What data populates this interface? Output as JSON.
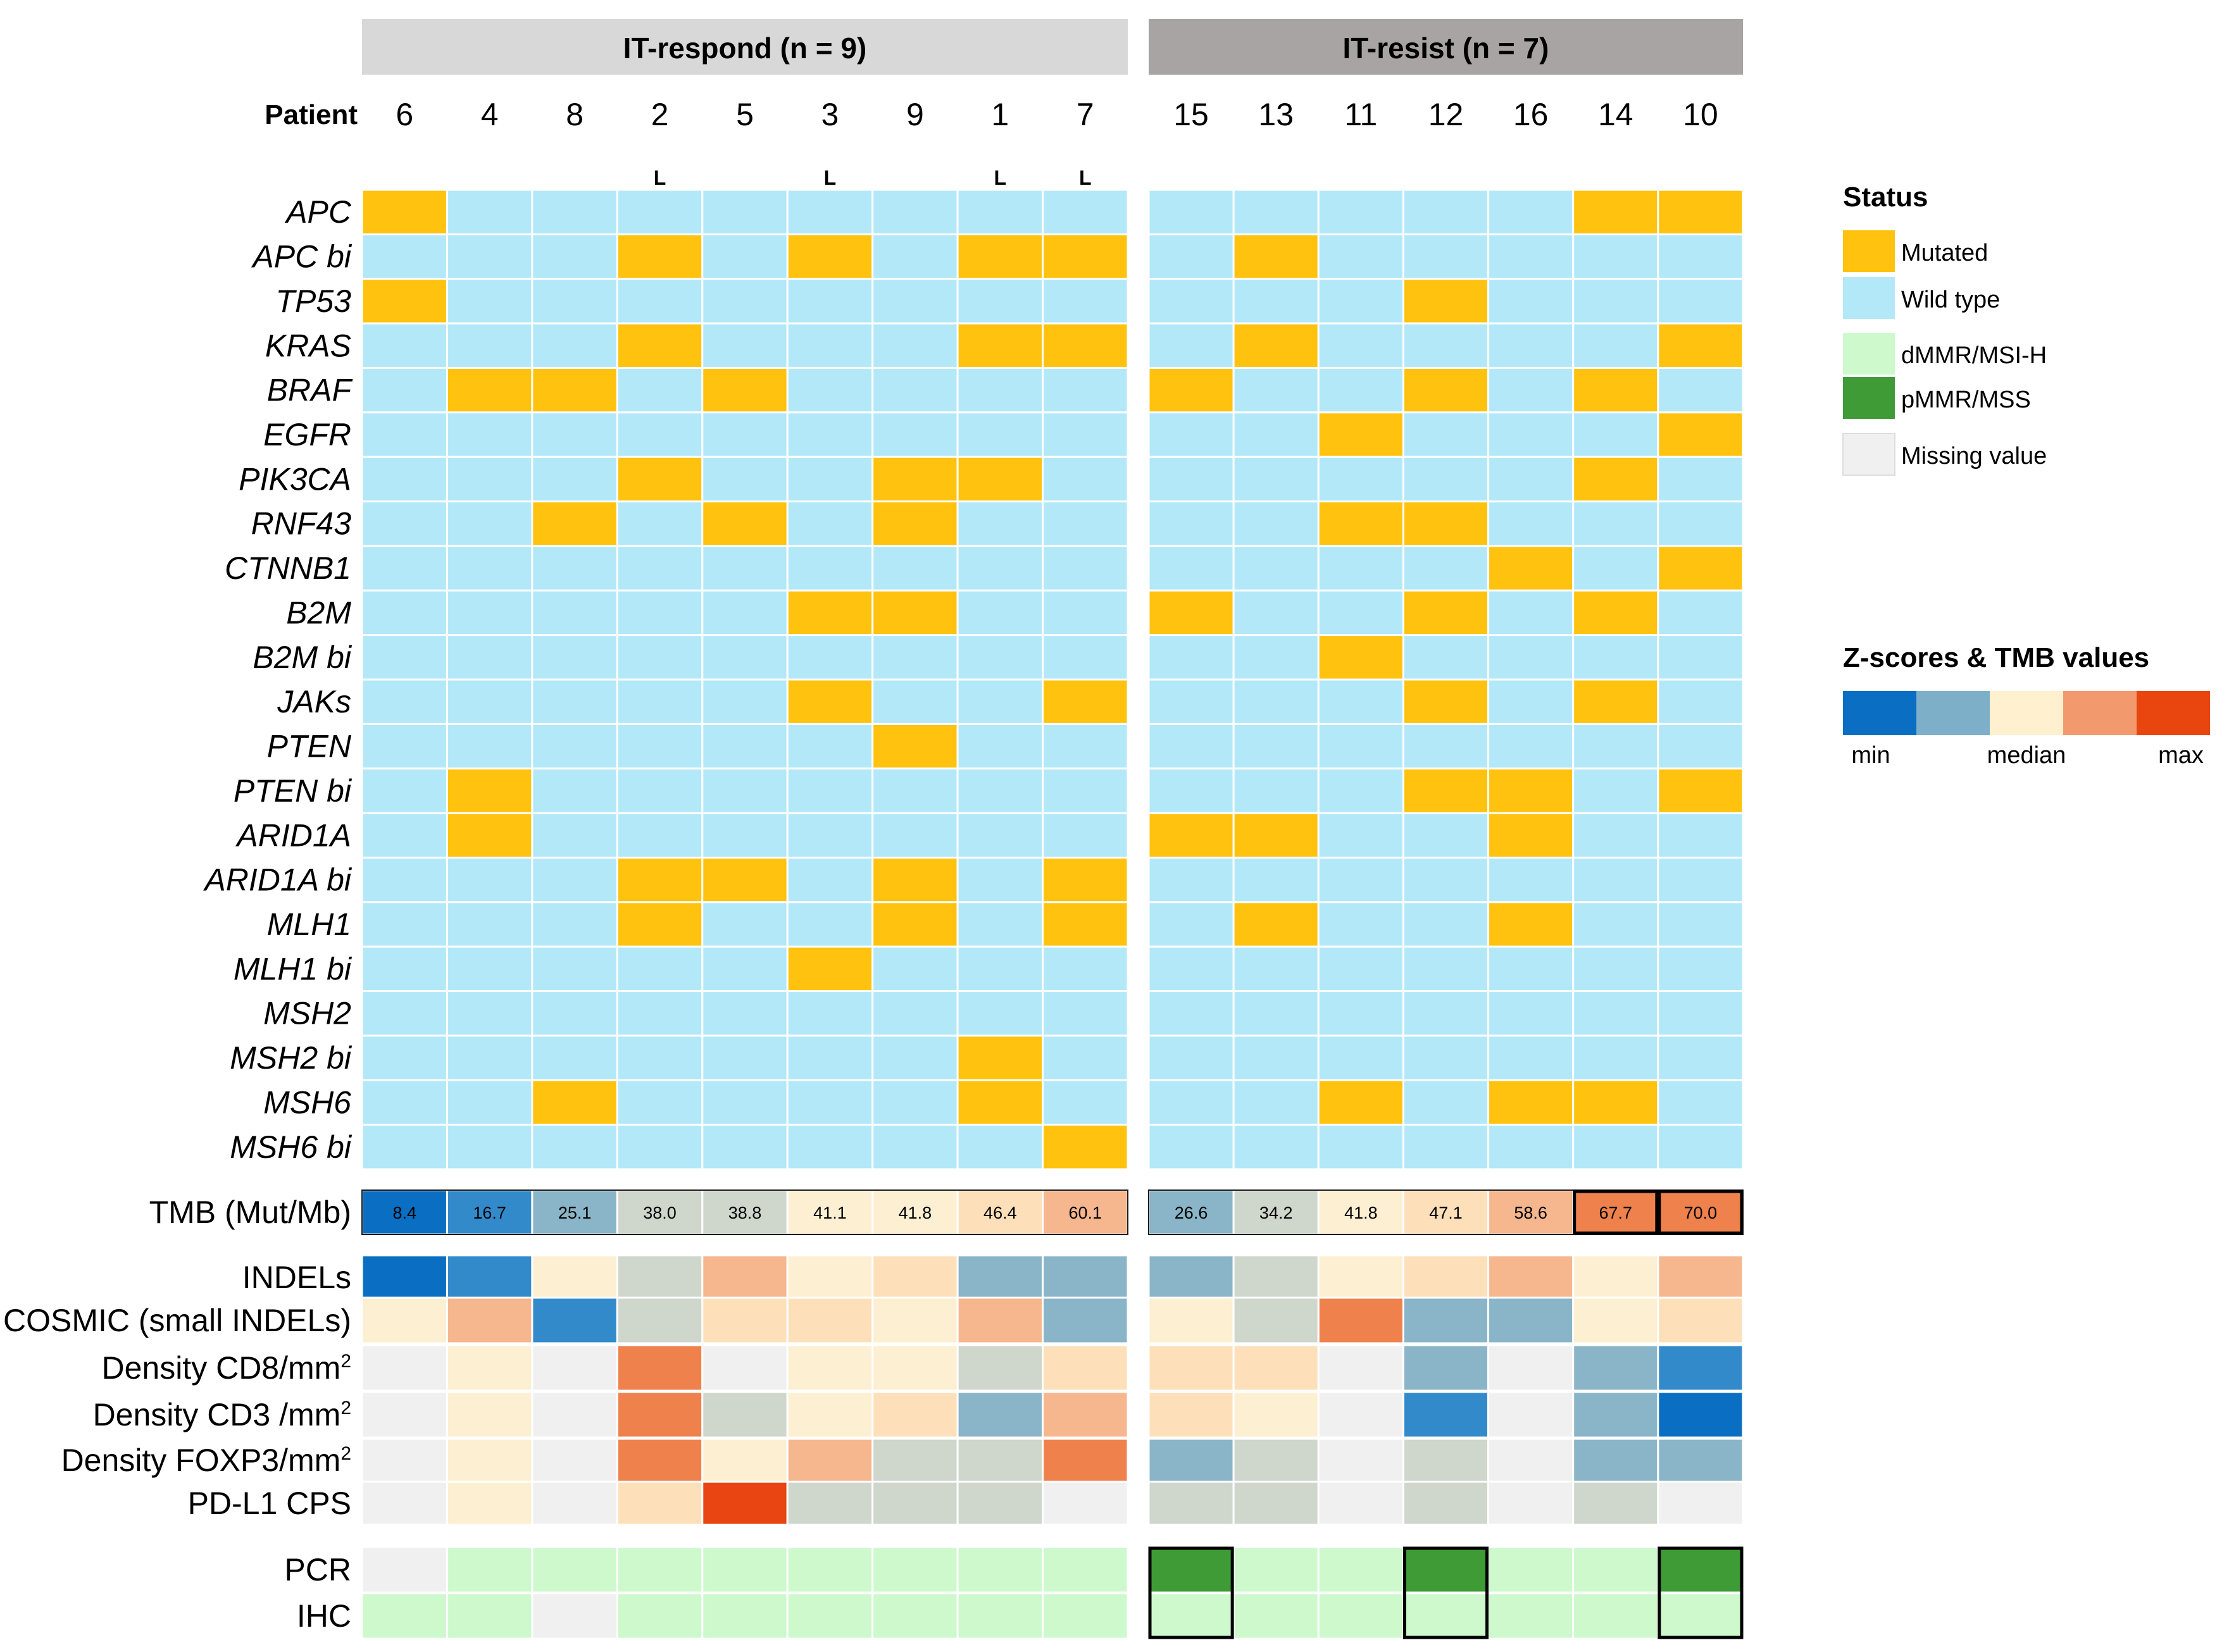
{
  "chart_data": {
    "type": "heatmap",
    "groups": [
      {
        "label": "IT-respond (n = 9)",
        "patients": [
          "6",
          "4",
          "8",
          "2",
          "5",
          "3",
          "9",
          "1",
          "7"
        ]
      },
      {
        "label": "IT-resist (n = 7)",
        "patients": [
          "15",
          "13",
          "11",
          "12",
          "16",
          "14",
          "10"
        ]
      }
    ],
    "patient_label": "Patient",
    "l_marks": [
      "",
      "",
      "",
      "L",
      "",
      "L",
      "",
      "L",
      "L",
      "",
      "",
      "",
      "",
      "",
      "",
      ""
    ],
    "mutation_rows": [
      {
        "gene": "APC",
        "values": [
          1,
          0,
          0,
          0,
          0,
          0,
          0,
          0,
          0,
          0,
          0,
          0,
          0,
          0,
          1,
          1
        ]
      },
      {
        "gene": "APC bi",
        "values": [
          0,
          0,
          0,
          1,
          0,
          1,
          0,
          1,
          1,
          0,
          1,
          0,
          0,
          0,
          0,
          0
        ]
      },
      {
        "gene": "TP53",
        "values": [
          1,
          0,
          0,
          0,
          0,
          0,
          0,
          0,
          0,
          0,
          0,
          0,
          1,
          0,
          0,
          0
        ]
      },
      {
        "gene": "KRAS",
        "values": [
          0,
          0,
          0,
          1,
          0,
          0,
          0,
          1,
          1,
          0,
          1,
          0,
          0,
          0,
          0,
          1
        ]
      },
      {
        "gene": "BRAF",
        "values": [
          0,
          1,
          1,
          0,
          1,
          0,
          0,
          0,
          0,
          1,
          0,
          0,
          1,
          0,
          1,
          0
        ]
      },
      {
        "gene": "EGFR",
        "values": [
          0,
          0,
          0,
          0,
          0,
          0,
          0,
          0,
          0,
          0,
          0,
          1,
          0,
          0,
          0,
          1
        ]
      },
      {
        "gene": "PIK3CA",
        "values": [
          0,
          0,
          0,
          1,
          0,
          0,
          1,
          1,
          0,
          0,
          0,
          0,
          0,
          0,
          1,
          0
        ]
      },
      {
        "gene": "RNF43",
        "values": [
          0,
          0,
          1,
          0,
          1,
          0,
          1,
          0,
          0,
          0,
          0,
          1,
          1,
          0,
          0,
          0
        ]
      },
      {
        "gene": "CTNNB1",
        "values": [
          0,
          0,
          0,
          0,
          0,
          0,
          0,
          0,
          0,
          0,
          0,
          0,
          0,
          1,
          0,
          1
        ]
      },
      {
        "gene": "B2M",
        "values": [
          0,
          0,
          0,
          0,
          0,
          1,
          1,
          0,
          0,
          1,
          0,
          0,
          1,
          0,
          1,
          0
        ]
      },
      {
        "gene": "B2M bi",
        "values": [
          0,
          0,
          0,
          0,
          0,
          0,
          0,
          0,
          0,
          0,
          0,
          1,
          0,
          0,
          0,
          0
        ]
      },
      {
        "gene": "JAKs",
        "values": [
          0,
          0,
          0,
          0,
          0,
          1,
          0,
          0,
          1,
          0,
          0,
          0,
          1,
          0,
          1,
          0
        ]
      },
      {
        "gene": "PTEN",
        "values": [
          0,
          0,
          0,
          0,
          0,
          0,
          1,
          0,
          0,
          0,
          0,
          0,
          0,
          0,
          0,
          0
        ]
      },
      {
        "gene": "PTEN bi",
        "values": [
          0,
          1,
          0,
          0,
          0,
          0,
          0,
          0,
          0,
          0,
          0,
          0,
          1,
          1,
          0,
          1
        ]
      },
      {
        "gene": "ARID1A",
        "values": [
          0,
          1,
          0,
          0,
          0,
          0,
          0,
          0,
          0,
          1,
          1,
          0,
          0,
          1,
          0,
          0
        ]
      },
      {
        "gene": "ARID1A bi",
        "values": [
          0,
          0,
          0,
          1,
          1,
          0,
          1,
          0,
          1,
          0,
          0,
          0,
          0,
          0,
          0,
          0
        ]
      },
      {
        "gene": "MLH1",
        "values": [
          0,
          0,
          0,
          1,
          0,
          0,
          1,
          0,
          1,
          0,
          1,
          0,
          0,
          1,
          0,
          0
        ]
      },
      {
        "gene": "MLH1 bi",
        "values": [
          0,
          0,
          0,
          0,
          0,
          1,
          0,
          0,
          0,
          0,
          0,
          0,
          0,
          0,
          0,
          0
        ]
      },
      {
        "gene": "MSH2",
        "values": [
          0,
          0,
          0,
          0,
          0,
          0,
          0,
          0,
          0,
          0,
          0,
          0,
          0,
          0,
          0,
          0
        ]
      },
      {
        "gene": "MSH2 bi",
        "values": [
          0,
          0,
          0,
          0,
          0,
          0,
          0,
          1,
          0,
          0,
          0,
          0,
          0,
          0,
          0,
          0
        ]
      },
      {
        "gene": "MSH6",
        "values": [
          0,
          0,
          1,
          0,
          0,
          0,
          0,
          1,
          0,
          0,
          0,
          1,
          0,
          1,
          1,
          0
        ]
      },
      {
        "gene": "MSH6 bi",
        "values": [
          0,
          0,
          0,
          0,
          0,
          0,
          0,
          0,
          1,
          0,
          0,
          0,
          0,
          0,
          0,
          0
        ]
      }
    ],
    "tmb_row": {
      "label": "TMB (Mut/Mb)",
      "values": [
        "8.4",
        "16.7",
        "25.1",
        "38.0",
        "38.8",
        "41.1",
        "41.8",
        "46.4",
        "60.1",
        "26.6",
        "34.2",
        "41.8",
        "47.1",
        "58.6",
        "67.7",
        "70.0"
      ],
      "color_levels": [
        0,
        1,
        2,
        3,
        3,
        4,
        4,
        5,
        6,
        2,
        3,
        4,
        5,
        6,
        7,
        7
      ],
      "highlighted": [
        false,
        false,
        false,
        false,
        false,
        false,
        false,
        false,
        false,
        false,
        false,
        false,
        false,
        false,
        true,
        true
      ]
    },
    "zscore_rows": [
      {
        "label": "INDELs",
        "levels": [
          0,
          1,
          4,
          3,
          6,
          4,
          5,
          2,
          2,
          2,
          3,
          4,
          5,
          6,
          4,
          6
        ]
      },
      {
        "label": "COSMIC (small INDELs)",
        "levels": [
          4,
          6,
          1,
          3,
          5,
          5,
          4,
          6,
          2,
          4,
          3,
          7,
          2,
          2,
          4,
          5
        ]
      },
      {
        "label": "Density CD8/mm",
        "sup": "2",
        "levels": [
          -1,
          4,
          -1,
          7,
          -1,
          4,
          4,
          3,
          5,
          5,
          5,
          -1,
          2,
          -1,
          2,
          1
        ]
      },
      {
        "label": "Density CD3 /mm",
        "sup": "2",
        "levels": [
          -1,
          4,
          -1,
          7,
          3,
          4,
          5,
          2,
          6,
          5,
          4,
          -1,
          1,
          -1,
          2,
          0
        ]
      },
      {
        "label": "Density FOXP3/mm",
        "sup": "2",
        "levels": [
          -1,
          4,
          -1,
          7,
          4,
          6,
          3,
          3,
          7,
          2,
          3,
          -1,
          3,
          -1,
          2,
          2
        ]
      },
      {
        "label": "PD-L1 CPS",
        "levels": [
          -1,
          4,
          -1,
          5,
          8,
          3,
          3,
          3,
          -1,
          3,
          3,
          -1,
          3,
          -1,
          3,
          -1
        ]
      }
    ],
    "msi_rows": [
      {
        "label": "PCR",
        "values": [
          "missing",
          "dMMR",
          "dMMR",
          "dMMR",
          "dMMR",
          "dMMR",
          "dMMR",
          "dMMR",
          "dMMR",
          "pMMR",
          "dMMR",
          "dMMR",
          "pMMR",
          "dMMR",
          "dMMR",
          "pMMR"
        ]
      },
      {
        "label": "IHC",
        "values": [
          "dMMR",
          "dMMR",
          "missing",
          "dMMR",
          "dMMR",
          "dMMR",
          "dMMR",
          "dMMR",
          "dMMR",
          "dMMR",
          "dMMR",
          "dMMR",
          "dMMR",
          "dMMR",
          "dMMR",
          "dMMR"
        ]
      }
    ],
    "msi_boxed_columns": [
      9,
      12,
      15
    ],
    "legend": {
      "status_title": "Status",
      "items": [
        {
          "label": "Mutated",
          "color": "#FFC20E"
        },
        {
          "label": "Wild type",
          "color": "#B3E8F8"
        },
        {
          "label": "dMMR/MSI-H",
          "color": "#CDF9CD"
        },
        {
          "label": "pMMR/MSS",
          "color": "#3E9B35"
        },
        {
          "label": "Missing value",
          "color": "#F0F0F0"
        }
      ],
      "scale_title": "Z-scores & TMB values",
      "scale_labels": [
        "min",
        "median",
        "max"
      ],
      "scale_colors": [
        "#0A6FC2",
        "#7EAFC8",
        "#FFF0D0",
        "#F29A6E",
        "#E8450F"
      ]
    },
    "colors": {
      "mutated": "#FFC20E",
      "wildtype": "#B3E8F8",
      "dmmr": "#CDF9CD",
      "pmmr": "#3E9B35",
      "missing": "#F0F0F0",
      "respond_header": "#D8D8D8",
      "resist_header": "#A8A4A4",
      "ramp": [
        "#0A6FC2",
        "#338ACB",
        "#8AB4C8",
        "#CFD6CC",
        "#FCEFD2",
        "#FDE0BA",
        "#F6B68E",
        "#EF814C",
        "#E84512"
      ]
    }
  }
}
